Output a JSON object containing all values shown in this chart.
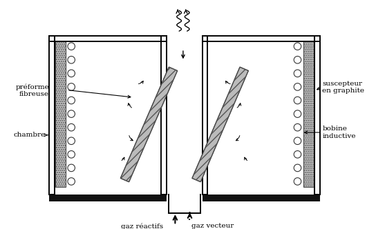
{
  "fig_width": 5.44,
  "fig_height": 3.32,
  "dpi": 100,
  "bg_color": "#ffffff",
  "lc": "#000000",
  "labels": {
    "preforme": "préforme\nfibreuse",
    "chambre": "chambre",
    "suscepteur": "suscepteur\nen graphite",
    "bobine": "bobine\ninductive",
    "gaz_reactifs": "gaz réactifs",
    "gaz_vecteur": "gaz vecteur"
  },
  "font_size": 7.5
}
